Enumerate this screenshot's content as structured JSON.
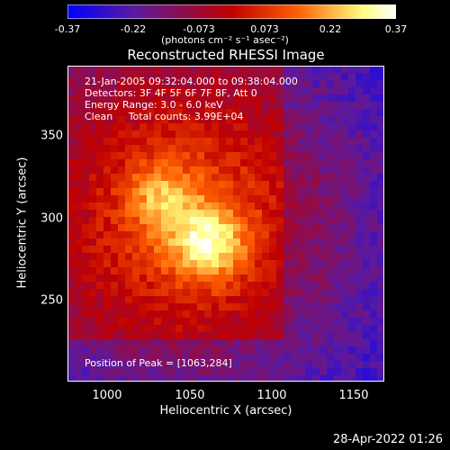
{
  "chart_data": {
    "type": "heatmap",
    "title": "Reconstructed RHESSI Image",
    "xlabel": "Heliocentric X (arcsec)",
    "ylabel": "Heliocentric Y (arcsec)",
    "xlim": [
      978,
      1170
    ],
    "ylim": [
      200,
      392
    ],
    "x_ticks": [
      "1000",
      "1050",
      "1100",
      "1150"
    ],
    "y_ticks": [
      "250",
      "300",
      "350"
    ],
    "colorbar": {
      "ticks": [
        "-0.37",
        "-0.22",
        "-0.073",
        "0.073",
        "0.22",
        "0.37"
      ],
      "min": -0.37,
      "max": 0.37,
      "units": "(photons cm⁻² s⁻¹ asec⁻²)",
      "colors": [
        "#0000ff",
        "#5a1aa0",
        "#c00000",
        "#ff6000",
        "#ffff80",
        "#ffffff"
      ]
    },
    "info": [
      "21-Jan-2005 09:32:04.000 to 09:38:04.000",
      "Detectors: 3F 4F 5F 6F 7F 8F, Att 0",
      "Energy Range: 3.0 - 6.0 keV",
      "Clean     Total counts: 3.99E+04"
    ],
    "peak_text": "Position of Peak = [1063,284]",
    "peak": [
      1063,
      284
    ],
    "secondary_peak": [
      1035,
      312
    ],
    "timestamp": "28-Apr-2022 01:26"
  }
}
